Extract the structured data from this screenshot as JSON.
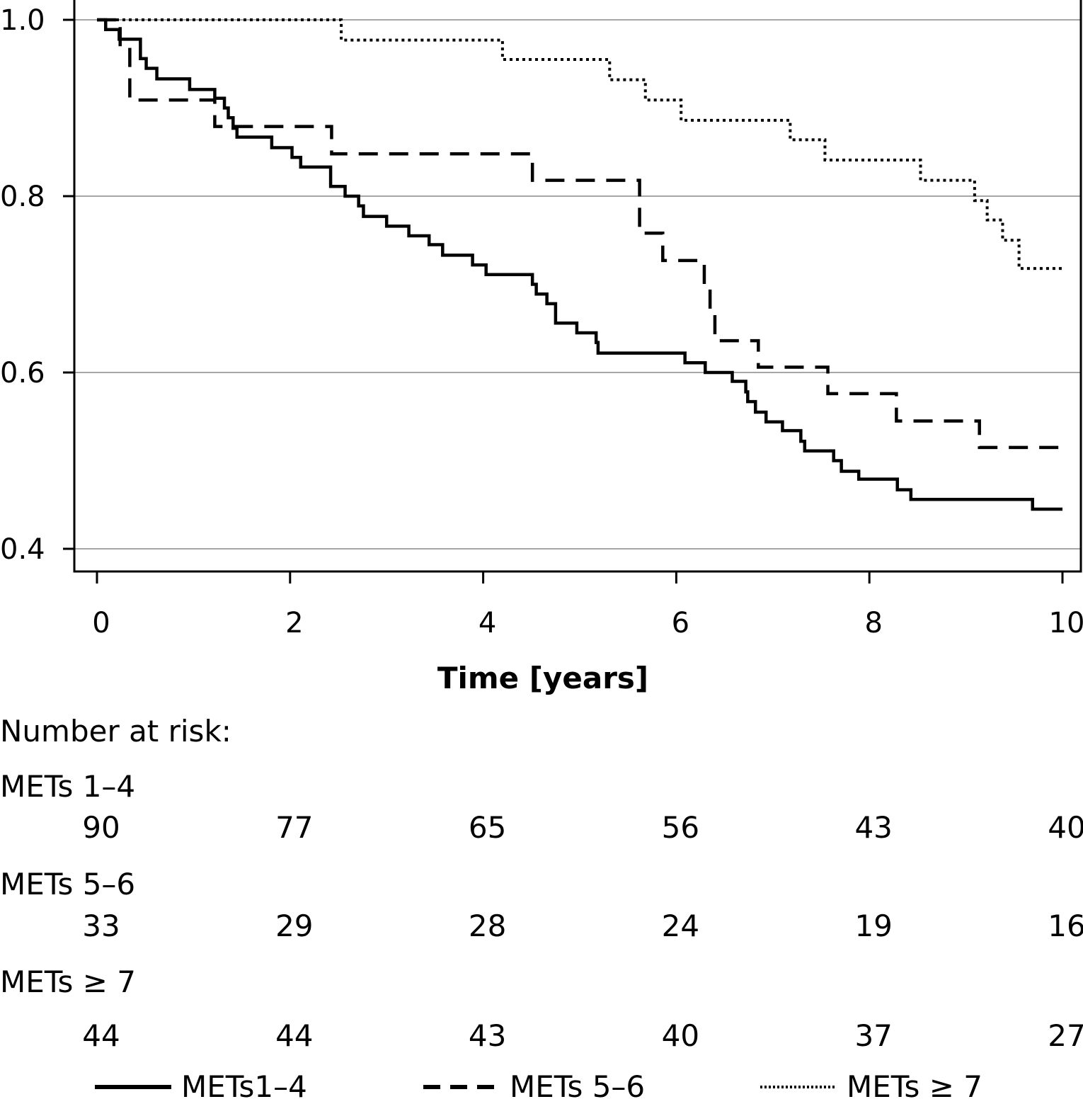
{
  "chart_data": {
    "type": "line",
    "subtype": "kaplan-meier-step",
    "title": "",
    "xlabel": "Time [years]",
    "ylabel": "",
    "xlim": [
      0,
      10
    ],
    "ylim": [
      0.4,
      1.0
    ],
    "x_ticks": [
      0,
      2,
      4,
      6,
      8,
      10
    ],
    "x_tick_labels": [
      "0",
      "2",
      "4",
      "6",
      "8",
      "10"
    ],
    "y_ticks": [
      0.4,
      0.6,
      0.8,
      1.0
    ],
    "y_tick_labels": [
      "0.4",
      "0.6",
      "0.8",
      "1.0"
    ],
    "grid": "horizontal",
    "legend_position": "bottom",
    "series": [
      {
        "name": "METs1–4",
        "style": "solid",
        "steps": [
          [
            0,
            1.0
          ],
          [
            0.09,
            0.989
          ],
          [
            0.23,
            0.978
          ],
          [
            0.45,
            0.956
          ],
          [
            0.51,
            0.945
          ],
          [
            0.62,
            0.933
          ],
          [
            0.96,
            0.921
          ],
          [
            1.22,
            0.911
          ],
          [
            1.32,
            0.9
          ],
          [
            1.36,
            0.889
          ],
          [
            1.41,
            0.877
          ],
          [
            1.45,
            0.867
          ],
          [
            1.81,
            0.855
          ],
          [
            2.02,
            0.844
          ],
          [
            2.11,
            0.833
          ],
          [
            2.42,
            0.811
          ],
          [
            2.57,
            0.8
          ],
          [
            2.71,
            0.789
          ],
          [
            2.76,
            0.777
          ],
          [
            3.0,
            0.766
          ],
          [
            3.23,
            0.755
          ],
          [
            3.44,
            0.745
          ],
          [
            3.58,
            0.733
          ],
          [
            3.89,
            0.722
          ],
          [
            4.03,
            0.711
          ],
          [
            4.51,
            0.7
          ],
          [
            4.55,
            0.689
          ],
          [
            4.66,
            0.678
          ],
          [
            4.75,
            0.656
          ],
          [
            4.97,
            0.645
          ],
          [
            5.17,
            0.634
          ],
          [
            5.19,
            0.622
          ],
          [
            6.09,
            0.611
          ],
          [
            6.3,
            0.6
          ],
          [
            6.58,
            0.59
          ],
          [
            6.72,
            0.578
          ],
          [
            6.74,
            0.567
          ],
          [
            6.82,
            0.555
          ],
          [
            6.93,
            0.544
          ],
          [
            7.1,
            0.534
          ],
          [
            7.29,
            0.522
          ],
          [
            7.33,
            0.511
          ],
          [
            7.63,
            0.5
          ],
          [
            7.71,
            0.488
          ],
          [
            7.89,
            0.479
          ],
          [
            8.29,
            0.467
          ],
          [
            8.43,
            0.456
          ],
          [
            9.69,
            0.445
          ],
          [
            10.0,
            0.445
          ]
        ],
        "at_risk": [
          90,
          77,
          65,
          56,
          43,
          40
        ]
      },
      {
        "name": "METs 5–6",
        "style": "dashed",
        "steps": [
          [
            0,
            1.0
          ],
          [
            0.24,
            0.97
          ],
          [
            0.34,
            0.909
          ],
          [
            1.22,
            0.879
          ],
          [
            2.43,
            0.848
          ],
          [
            4.51,
            0.818
          ],
          [
            5.62,
            0.758
          ],
          [
            5.86,
            0.727
          ],
          [
            6.29,
            0.697
          ],
          [
            6.35,
            0.667
          ],
          [
            6.4,
            0.636
          ],
          [
            6.85,
            0.606
          ],
          [
            7.57,
            0.576
          ],
          [
            8.28,
            0.545
          ],
          [
            9.14,
            0.515
          ],
          [
            10.0,
            0.515
          ]
        ],
        "at_risk": [
          33,
          29,
          28,
          24,
          19,
          16
        ]
      },
      {
        "name": "METs ≥ 7",
        "style": "dotted",
        "steps": [
          [
            0,
            1.0
          ],
          [
            2.53,
            0.977
          ],
          [
            4.2,
            0.955
          ],
          [
            5.31,
            0.932
          ],
          [
            5.68,
            0.909
          ],
          [
            6.05,
            0.886
          ],
          [
            7.18,
            0.864
          ],
          [
            7.54,
            0.841
          ],
          [
            8.53,
            0.818
          ],
          [
            9.09,
            0.795
          ],
          [
            9.22,
            0.773
          ],
          [
            9.38,
            0.75
          ],
          [
            9.55,
            0.718
          ],
          [
            10.0,
            0.718
          ]
        ],
        "at_risk": [
          44,
          44,
          43,
          40,
          37,
          27
        ]
      }
    ]
  },
  "risk_table": {
    "title": "Number at risk:",
    "times": [
      0,
      2,
      4,
      6,
      8,
      10
    ],
    "groups": [
      {
        "label": "METs 1–4",
        "values": [
          "90",
          "77",
          "65",
          "56",
          "43",
          "40"
        ]
      },
      {
        "label": "METs 5–6",
        "values": [
          "33",
          "29",
          "28",
          "24",
          "19",
          "16"
        ]
      },
      {
        "label": "METs ≥ 7",
        "values": [
          "44",
          "44",
          "43",
          "40",
          "37",
          "27"
        ]
      }
    ]
  },
  "legend": {
    "items": [
      {
        "label": "METs1–4",
        "style": "solid"
      },
      {
        "label": "METs 5–6",
        "style": "dashed"
      },
      {
        "label": "METs ≥ 7",
        "style": "dotted"
      }
    ]
  },
  "colors": {
    "line": "#000000",
    "grid": "#a6a6a6",
    "frame": "#000000"
  }
}
